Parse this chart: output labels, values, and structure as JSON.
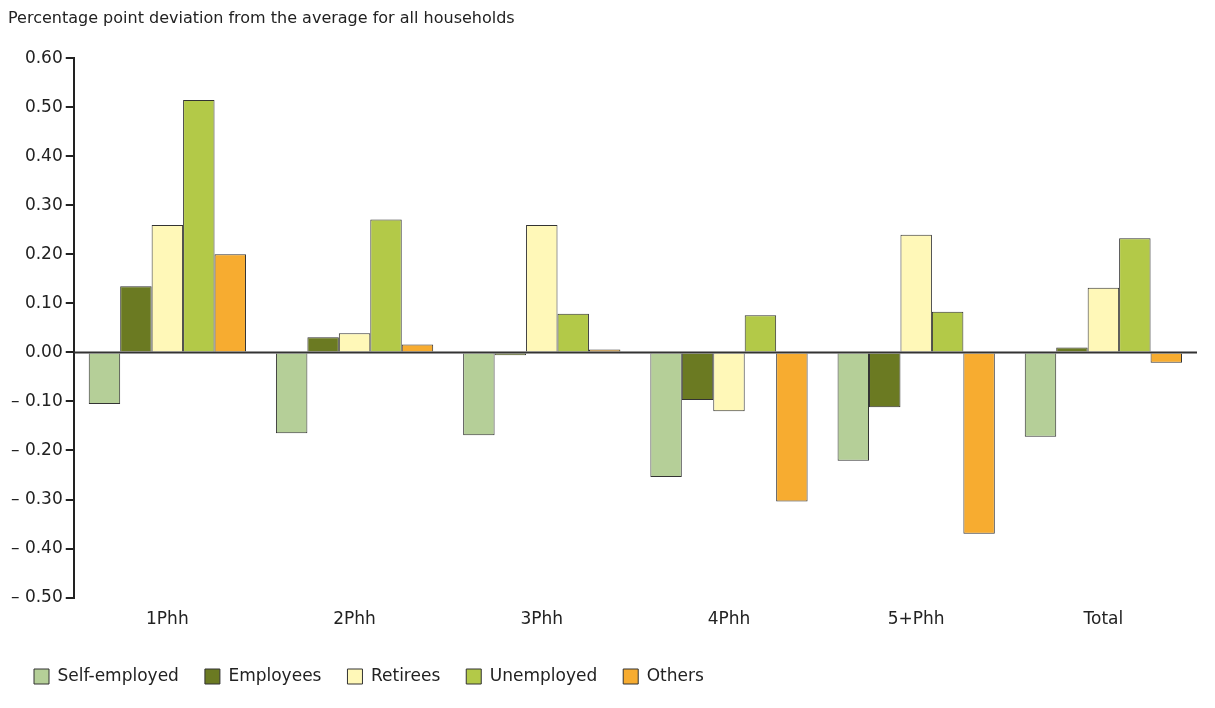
{
  "chart_data": {
    "type": "bar",
    "ylabel": "Percentage point deviation from the average for all households",
    "categories": [
      "1Phh",
      "2Phh",
      "3Phh",
      "4Phh",
      "5+Phh",
      "Total"
    ],
    "series": [
      {
        "name": "Self-employed",
        "color": "#b5cf98",
        "values": [
          -0.105,
          -0.165,
          -0.169,
          -0.254,
          -0.221,
          -0.172
        ]
      },
      {
        "name": "Employees",
        "color": "#6b7a22",
        "values": [
          0.135,
          0.031,
          -0.006,
          -0.097,
          -0.112,
          0.01
        ]
      },
      {
        "name": "Retirees",
        "color": "#fff8b8",
        "values": [
          0.26,
          0.039,
          0.26,
          -0.12,
          0.24,
          0.132
        ]
      },
      {
        "name": "Unemployed",
        "color": "#b3c948",
        "values": [
          0.515,
          0.271,
          0.079,
          0.076,
          0.083,
          0.233
        ]
      },
      {
        "name": "Others",
        "color": "#f7ac30",
        "values": [
          0.2,
          0.016,
          0.006,
          -0.304,
          -0.37,
          -0.021
        ]
      }
    ],
    "ylim": [
      -0.5,
      0.6
    ],
    "yticks": [
      {
        "value": -0.5,
        "label": "– 0.50"
      },
      {
        "value": -0.4,
        "label": "– 0.40"
      },
      {
        "value": -0.3,
        "label": "– 0.30"
      },
      {
        "value": -0.2,
        "label": "– 0.20"
      },
      {
        "value": -0.1,
        "label": "– 0.10"
      },
      {
        "value": 0,
        "label": "0.00"
      },
      {
        "value": 0.1,
        "label": "0.10"
      },
      {
        "value": 0.2,
        "label": "0.20"
      },
      {
        "value": 0.3,
        "label": "0.30"
      },
      {
        "value": 0.4,
        "label": "0.40"
      },
      {
        "value": 0.5,
        "label": "0.50"
      },
      {
        "value": 0.6,
        "label": "0.60"
      }
    ],
    "grid": false,
    "ref_lines": [
      {
        "axis": "y",
        "value": 0,
        "color": "#333333"
      }
    ],
    "legend": "bottom left"
  }
}
